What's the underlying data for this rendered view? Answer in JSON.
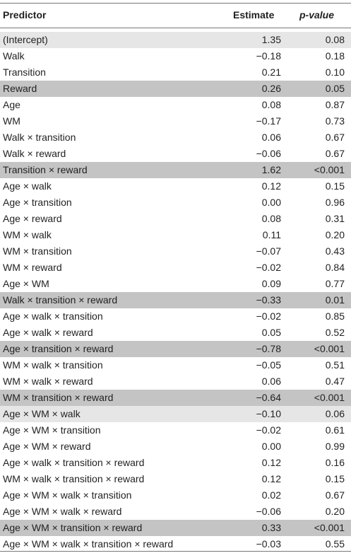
{
  "headers": {
    "predictor": "Predictor",
    "estimate": "Estimate",
    "pvalue": "p-value"
  },
  "rows": [
    {
      "predictor": "(Intercept)",
      "estimate": "1.35",
      "p": "0.08",
      "shade": "light"
    },
    {
      "predictor": "Walk",
      "estimate": "−0.18",
      "p": "0.18",
      "shade": ""
    },
    {
      "predictor": "Transition",
      "estimate": "0.21",
      "p": "0.10",
      "shade": ""
    },
    {
      "predictor": "Reward",
      "estimate": "0.26",
      "p": "0.05",
      "shade": "dark"
    },
    {
      "predictor": "Age",
      "estimate": "0.08",
      "p": "0.87",
      "shade": ""
    },
    {
      "predictor": "WM",
      "estimate": "−0.17",
      "p": "0.73",
      "shade": ""
    },
    {
      "predictor": "Walk × transition",
      "estimate": "0.06",
      "p": "0.67",
      "shade": ""
    },
    {
      "predictor": "Walk × reward",
      "estimate": "−0.06",
      "p": "0.67",
      "shade": ""
    },
    {
      "predictor": "Transition × reward",
      "estimate": "1.62",
      "p": "<0.001",
      "shade": "dark"
    },
    {
      "predictor": "Age × walk",
      "estimate": "0.12",
      "p": "0.15",
      "shade": ""
    },
    {
      "predictor": "Age × transition",
      "estimate": "0.00",
      "p": "0.96",
      "shade": ""
    },
    {
      "predictor": "Age × reward",
      "estimate": "0.08",
      "p": "0.31",
      "shade": ""
    },
    {
      "predictor": "WM × walk",
      "estimate": "0.11",
      "p": "0.20",
      "shade": ""
    },
    {
      "predictor": "WM × transition",
      "estimate": "−0.07",
      "p": "0.43",
      "shade": ""
    },
    {
      "predictor": "WM × reward",
      "estimate": "−0.02",
      "p": "0.84",
      "shade": ""
    },
    {
      "predictor": "Age × WM",
      "estimate": "0.09",
      "p": "0.77",
      "shade": ""
    },
    {
      "predictor": "Walk × transition × reward",
      "estimate": "−0.33",
      "p": "0.01",
      "shade": "dark"
    },
    {
      "predictor": "Age × walk × transition",
      "estimate": "−0.02",
      "p": "0.85",
      "shade": ""
    },
    {
      "predictor": "Age × walk × reward",
      "estimate": "0.05",
      "p": "0.52",
      "shade": ""
    },
    {
      "predictor": "Age × transition × reward",
      "estimate": "−0.78",
      "p": "<0.001",
      "shade": "dark"
    },
    {
      "predictor": "WM × walk × transition",
      "estimate": "−0.05",
      "p": "0.51",
      "shade": ""
    },
    {
      "predictor": "WM × walk × reward",
      "estimate": "0.06",
      "p": "0.47",
      "shade": ""
    },
    {
      "predictor": "WM × transition × reward",
      "estimate": "−0.64",
      "p": "<0.001",
      "shade": "dark"
    },
    {
      "predictor": "Age × WM × walk",
      "estimate": "−0.10",
      "p": "0.06",
      "shade": "light"
    },
    {
      "predictor": "Age × WM × transition",
      "estimate": "−0.02",
      "p": "0.61",
      "shade": ""
    },
    {
      "predictor": "Age × WM × reward",
      "estimate": "0.00",
      "p": "0.99",
      "shade": ""
    },
    {
      "predictor": "Age × walk × transition × reward",
      "estimate": "0.12",
      "p": "0.16",
      "shade": ""
    },
    {
      "predictor": "WM × walk × transition × reward",
      "estimate": "0.12",
      "p": "0.15",
      "shade": ""
    },
    {
      "predictor": "Age × WM × walk × transition",
      "estimate": "0.02",
      "p": "0.67",
      "shade": ""
    },
    {
      "predictor": "Age × WM × walk × reward",
      "estimate": "−0.06",
      "p": "0.20",
      "shade": ""
    },
    {
      "predictor": "Age × WM × transition × reward",
      "estimate": "0.33",
      "p": "<0.001",
      "shade": "dark"
    },
    {
      "predictor": "Age × WM × walk × transition × reward",
      "estimate": "−0.03",
      "p": "0.55",
      "shade": ""
    }
  ],
  "colors": {
    "light_shade": "#e6e6e6",
    "dark_shade": "#c4c4c4",
    "rule": "#777777"
  }
}
